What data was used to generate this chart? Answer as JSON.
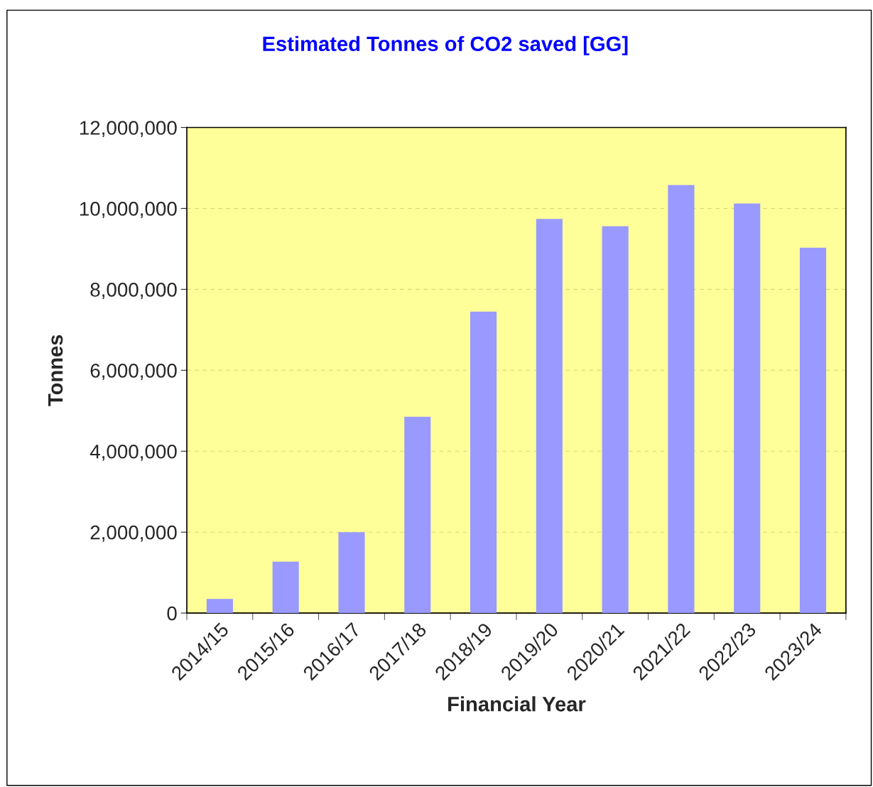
{
  "chart_data": {
    "type": "bar",
    "title": "Estimated Tonnes of CO2 saved [GG]",
    "xlabel": "Financial Year",
    "ylabel": "Tonnes",
    "categories": [
      "2014/15",
      "2015/16",
      "2016/17",
      "2017/18",
      "2018/19",
      "2019/20",
      "2020/21",
      "2021/22",
      "2022/23",
      "2023/24"
    ],
    "values": [
      350000,
      1270000,
      2000000,
      4850000,
      7450000,
      9740000,
      9560000,
      10580000,
      10120000,
      9030000
    ],
    "color": "#9999ff",
    "ylim": [
      0,
      12000000
    ],
    "yticks": [
      0,
      {
        "value": 2000000,
        "label": "2,000,000"
      },
      {
        "value": 4000000,
        "label": "4,000,000"
      },
      {
        "value": 6000000,
        "label": "6,000,000"
      },
      {
        "value": 8000000,
        "label": "8,000,000"
      },
      {
        "value": 10000000,
        "label": "10,000,000"
      },
      {
        "value": 12000000,
        "label": "12,000,000"
      }
    ],
    "grid": "y"
  }
}
